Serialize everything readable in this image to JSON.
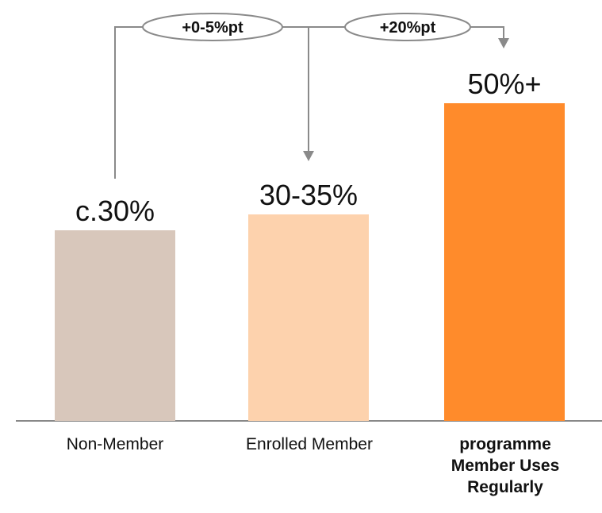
{
  "chart_data": {
    "type": "bar",
    "categories": [
      "Non-Member",
      "Enrolled Member",
      "programme Member Uses Regularly"
    ],
    "values": [
      30,
      32.5,
      50
    ],
    "value_labels": [
      "c.30%",
      "30-35%",
      "50%+"
    ],
    "colors": [
      "#d8c7bb",
      "#fdd2ad",
      "#ff8b2b"
    ],
    "category_label_lines": [
      [
        "Non-Member"
      ],
      [
        "Enrolled Member"
      ],
      [
        "programme",
        "Member Uses",
        "Regularly"
      ]
    ],
    "bold_category": [
      false,
      false,
      true
    ],
    "annotations": [
      {
        "from": 0,
        "to": 1,
        "label": "+0-5%pt"
      },
      {
        "from": 1,
        "to": 2,
        "label": "+20%pt"
      }
    ],
    "ylim": [
      0,
      60
    ],
    "grid": false
  }
}
